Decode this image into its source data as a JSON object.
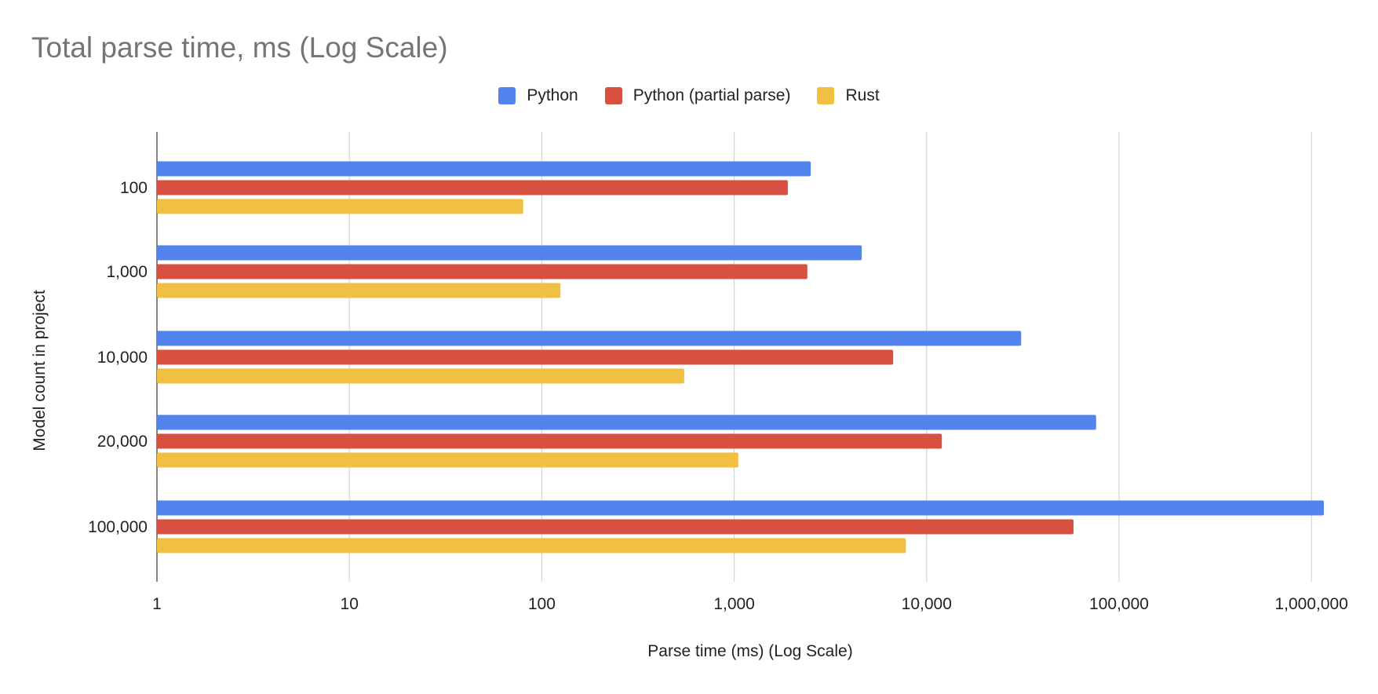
{
  "chart_data": {
    "type": "bar",
    "orientation": "horizontal",
    "title": "Total parse time, ms (Log Scale)",
    "xlabel": "Parse time (ms) (Log Scale)",
    "ylabel": "Model count in project",
    "x_scale": "log",
    "xlim": [
      1,
      1000000
    ],
    "x_ticks": [
      "1",
      "10",
      "100",
      "1,000",
      "10,000",
      "100,000",
      "1,000,000"
    ],
    "grid": true,
    "legend_position": "top",
    "categories": [
      "100",
      "1,000",
      "10,000",
      "20,000",
      "100,000"
    ],
    "series": [
      {
        "name": "Python",
        "color": "#5383ec",
        "values": [
          2500,
          4600,
          31000,
          76000,
          1160000
        ]
      },
      {
        "name": "Python (partial parse)",
        "color": "#d85140",
        "values": [
          1900,
          2400,
          6700,
          12000,
          58000
        ]
      },
      {
        "name": "Rust",
        "color": "#f1bf42",
        "values": [
          80,
          125,
          550,
          1050,
          7800
        ]
      }
    ]
  }
}
